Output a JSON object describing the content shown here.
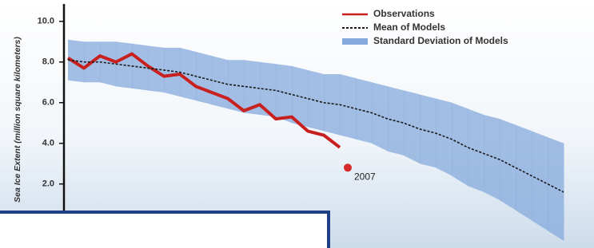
{
  "chart_data": {
    "type": "line",
    "y_label": "Sea Ice Extent (million square kilometers)",
    "categories": [
      null,
      null,
      null,
      null,
      null,
      null,
      null,
      null,
      null,
      null,
      null,
      null,
      null,
      null,
      null,
      null,
      null,
      null,
      null,
      null,
      null,
      null,
      null,
      null,
      null,
      null,
      null,
      null,
      null,
      null,
      null,
      null
    ],
    "series": [
      {
        "name": "Observations",
        "color": "#c8201e",
        "style": "solid",
        "values": [
          8.2,
          7.7,
          8.3,
          8.0,
          8.4,
          7.8,
          7.3,
          7.4,
          6.8,
          6.5,
          6.2,
          5.6,
          5.9,
          5.2,
          5.3,
          4.6,
          4.4,
          3.8,
          null,
          null,
          null,
          null,
          null,
          null,
          null,
          null,
          null,
          null,
          null,
          null,
          null,
          null
        ]
      },
      {
        "name": "Mean of Models",
        "color": "#1a1a1a",
        "style": "dashed",
        "values": [
          8.1,
          8.0,
          8.0,
          7.9,
          7.8,
          7.7,
          7.6,
          7.5,
          7.3,
          7.1,
          6.9,
          6.8,
          6.7,
          6.6,
          6.4,
          6.2,
          6.0,
          5.9,
          5.7,
          5.5,
          5.2,
          5.0,
          4.7,
          4.5,
          4.2,
          3.8,
          3.5,
          3.2,
          2.8,
          2.4,
          2.0,
          1.6
        ]
      },
      {
        "name": "Standard Deviation of Models",
        "color": "#86a9dc",
        "style": "band",
        "values": [
          1.0,
          1.0,
          1.0,
          1.1,
          1.1,
          1.1,
          1.1,
          1.2,
          1.2,
          1.2,
          1.2,
          1.3,
          1.3,
          1.3,
          1.4,
          1.4,
          1.4,
          1.5,
          1.5,
          1.5,
          1.6,
          1.6,
          1.7,
          1.7,
          1.8,
          1.9,
          1.9,
          2.0,
          2.1,
          2.2,
          2.3,
          2.4
        ]
      }
    ],
    "highlight": {
      "label": "2007",
      "value": 2.8,
      "color": "#d42a2a"
    },
    "ylim": [
      -1.15,
      11.05
    ],
    "yticks": [
      {
        "value": 2,
        "label": "2.0"
      },
      {
        "value": 4,
        "label": "4.0"
      },
      {
        "value": 6,
        "label": "6.0"
      },
      {
        "value": 8,
        "label": "8.0"
      },
      {
        "value": 10,
        "label": "10.0"
      }
    ],
    "legend": "top-right"
  }
}
